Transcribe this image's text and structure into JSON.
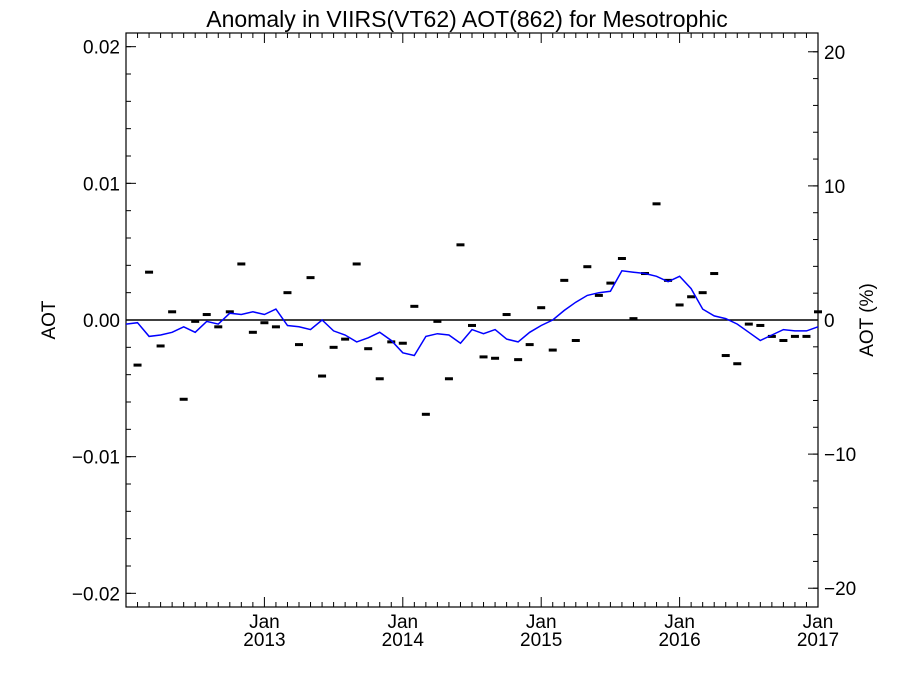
{
  "chart_data": {
    "type": "scatter",
    "title": "Anomaly in VIIRS(VT62) AOT(862) for Mesotrophic",
    "ylabel_left": "AOT",
    "ylabel_right": "AOT (%)",
    "ylim_left": [
      -0.021,
      0.021
    ],
    "ylim_right": [
      -21.4,
      21.4
    ],
    "yticks_left": [
      {
        "value": 0.02,
        "label": "0.02"
      },
      {
        "value": 0.01,
        "label": "0.01"
      },
      {
        "value": 0.0,
        "label": "0.00"
      },
      {
        "value": -0.01,
        "label": "−0.01"
      },
      {
        "value": -0.02,
        "label": "−0.02"
      }
    ],
    "yticks_right": [
      {
        "value": 20,
        "label": "20"
      },
      {
        "value": 10,
        "label": "10"
      },
      {
        "value": 0,
        "label": "0"
      },
      {
        "value": -10,
        "label": "−10"
      },
      {
        "value": -20,
        "label": "−20"
      }
    ],
    "xlim": [
      "2012-01",
      "2017-01"
    ],
    "xticks": [
      {
        "month": "Jan",
        "year": "2013",
        "date": "2013-01"
      },
      {
        "month": "Jan",
        "year": "2014",
        "date": "2014-01"
      },
      {
        "month": "Jan",
        "year": "2015",
        "date": "2015-01"
      },
      {
        "month": "Jan",
        "year": "2016",
        "date": "2016-01"
      },
      {
        "month": "Jan",
        "year": "2017",
        "date": "2017-01"
      }
    ],
    "zero_line": true,
    "grid": false,
    "series": [
      {
        "kind": "monthly-markers",
        "color": "#000000",
        "points": [
          {
            "x": "2012-02",
            "y": -0.0033
          },
          {
            "x": "2012-03",
            "y": 0.0035
          },
          {
            "x": "2012-04",
            "y": -0.0019
          },
          {
            "x": "2012-05",
            "y": 0.0006
          },
          {
            "x": "2012-06",
            "y": -0.0058
          },
          {
            "x": "2012-07",
            "y": -0.0001
          },
          {
            "x": "2012-08",
            "y": 0.0004
          },
          {
            "x": "2012-09",
            "y": -0.0005
          },
          {
            "x": "2012-10",
            "y": 0.0006
          },
          {
            "x": "2012-11",
            "y": 0.0041
          },
          {
            "x": "2012-12",
            "y": -0.0009
          },
          {
            "x": "2013-01",
            "y": -0.0002
          },
          {
            "x": "2013-02",
            "y": -0.0005
          },
          {
            "x": "2013-03",
            "y": 0.002
          },
          {
            "x": "2013-04",
            "y": -0.0018
          },
          {
            "x": "2013-05",
            "y": 0.0031
          },
          {
            "x": "2013-06",
            "y": -0.0041
          },
          {
            "x": "2013-07",
            "y": -0.002
          },
          {
            "x": "2013-08",
            "y": -0.0014
          },
          {
            "x": "2013-09",
            "y": 0.0041
          },
          {
            "x": "2013-10",
            "y": -0.0021
          },
          {
            "x": "2013-11",
            "y": -0.0043
          },
          {
            "x": "2013-12",
            "y": -0.0016
          },
          {
            "x": "2014-01",
            "y": -0.0017
          },
          {
            "x": "2014-02",
            "y": 0.001
          },
          {
            "x": "2014-03",
            "y": -0.0069
          },
          {
            "x": "2014-04",
            "y": -0.0001
          },
          {
            "x": "2014-05",
            "y": -0.0043
          },
          {
            "x": "2014-06",
            "y": 0.0055
          },
          {
            "x": "2014-07",
            "y": -0.0004
          },
          {
            "x": "2014-08",
            "y": -0.0027
          },
          {
            "x": "2014-09",
            "y": -0.0028
          },
          {
            "x": "2014-10",
            "y": 0.0004
          },
          {
            "x": "2014-11",
            "y": -0.0029
          },
          {
            "x": "2014-12",
            "y": -0.0018
          },
          {
            "x": "2015-01",
            "y": 0.0009
          },
          {
            "x": "2015-02",
            "y": -0.0022
          },
          {
            "x": "2015-03",
            "y": 0.0029
          },
          {
            "x": "2015-04",
            "y": -0.0015
          },
          {
            "x": "2015-05",
            "y": 0.0039
          },
          {
            "x": "2015-06",
            "y": 0.0018
          },
          {
            "x": "2015-07",
            "y": 0.0027
          },
          {
            "x": "2015-08",
            "y": 0.0045
          },
          {
            "x": "2015-09",
            "y": 0.0001
          },
          {
            "x": "2015-10",
            "y": 0.0034
          },
          {
            "x": "2015-11",
            "y": 0.0085
          },
          {
            "x": "2015-12",
            "y": 0.0029
          },
          {
            "x": "2016-01",
            "y": 0.0011
          },
          {
            "x": "2016-02",
            "y": 0.0017
          },
          {
            "x": "2016-03",
            "y": 0.002
          },
          {
            "x": "2016-04",
            "y": 0.0034
          },
          {
            "x": "2016-05",
            "y": -0.0026
          },
          {
            "x": "2016-06",
            "y": -0.0032
          },
          {
            "x": "2016-07",
            "y": -0.0003
          },
          {
            "x": "2016-08",
            "y": -0.0004
          },
          {
            "x": "2016-09",
            "y": -0.0012
          },
          {
            "x": "2016-10",
            "y": -0.0015
          },
          {
            "x": "2016-11",
            "y": -0.0012
          },
          {
            "x": "2016-12",
            "y": -0.0012
          },
          {
            "x": "2017-01",
            "y": 0.0006
          }
        ]
      },
      {
        "kind": "smoothed-line",
        "color": "#0000ff",
        "points": [
          {
            "x": "2012-01",
            "y": -0.0003
          },
          {
            "x": "2012-02",
            "y": -0.0002
          },
          {
            "x": "2012-03",
            "y": -0.0012
          },
          {
            "x": "2012-04",
            "y": -0.0011
          },
          {
            "x": "2012-05",
            "y": -0.0009
          },
          {
            "x": "2012-06",
            "y": -0.0005
          },
          {
            "x": "2012-07",
            "y": -0.0009
          },
          {
            "x": "2012-08",
            "y": -0.0001
          },
          {
            "x": "2012-09",
            "y": -0.0003
          },
          {
            "x": "2012-10",
            "y": 0.0005
          },
          {
            "x": "2012-11",
            "y": 0.0004
          },
          {
            "x": "2012-12",
            "y": 0.0006
          },
          {
            "x": "2013-01",
            "y": 0.0004
          },
          {
            "x": "2013-02",
            "y": 0.0008
          },
          {
            "x": "2013-03",
            "y": -0.0004
          },
          {
            "x": "2013-04",
            "y": -0.0005
          },
          {
            "x": "2013-05",
            "y": -0.0007
          },
          {
            "x": "2013-06",
            "y": 0.0
          },
          {
            "x": "2013-07",
            "y": -0.0008
          },
          {
            "x": "2013-08",
            "y": -0.0011
          },
          {
            "x": "2013-09",
            "y": -0.0016
          },
          {
            "x": "2013-10",
            "y": -0.0013
          },
          {
            "x": "2013-11",
            "y": -0.0009
          },
          {
            "x": "2013-12",
            "y": -0.0015
          },
          {
            "x": "2014-01",
            "y": -0.0024
          },
          {
            "x": "2014-02",
            "y": -0.0026
          },
          {
            "x": "2014-03",
            "y": -0.0012
          },
          {
            "x": "2014-04",
            "y": -0.001
          },
          {
            "x": "2014-05",
            "y": -0.0011
          },
          {
            "x": "2014-06",
            "y": -0.0017
          },
          {
            "x": "2014-07",
            "y": -0.0007
          },
          {
            "x": "2014-08",
            "y": -0.001
          },
          {
            "x": "2014-09",
            "y": -0.0007
          },
          {
            "x": "2014-10",
            "y": -0.0014
          },
          {
            "x": "2014-11",
            "y": -0.0016
          },
          {
            "x": "2014-12",
            "y": -0.0009
          },
          {
            "x": "2015-01",
            "y": -0.0004
          },
          {
            "x": "2015-02",
            "y": 0.0
          },
          {
            "x": "2015-03",
            "y": 0.0007
          },
          {
            "x": "2015-04",
            "y": 0.0013
          },
          {
            "x": "2015-05",
            "y": 0.0018
          },
          {
            "x": "2015-06",
            "y": 0.002
          },
          {
            "x": "2015-07",
            "y": 0.0021
          },
          {
            "x": "2015-08",
            "y": 0.0036
          },
          {
            "x": "2015-09",
            "y": 0.0035
          },
          {
            "x": "2015-10",
            "y": 0.0034
          },
          {
            "x": "2015-11",
            "y": 0.0032
          },
          {
            "x": "2015-12",
            "y": 0.0028
          },
          {
            "x": "2016-01",
            "y": 0.0032
          },
          {
            "x": "2016-02",
            "y": 0.0023
          },
          {
            "x": "2016-03",
            "y": 0.0008
          },
          {
            "x": "2016-04",
            "y": 0.0003
          },
          {
            "x": "2016-05",
            "y": 0.0001
          },
          {
            "x": "2016-06",
            "y": -0.0003
          },
          {
            "x": "2016-07",
            "y": -0.0009
          },
          {
            "x": "2016-08",
            "y": -0.0015
          },
          {
            "x": "2016-09",
            "y": -0.0011
          },
          {
            "x": "2016-10",
            "y": -0.0007
          },
          {
            "x": "2016-11",
            "y": -0.0008
          },
          {
            "x": "2016-12",
            "y": -0.0008
          },
          {
            "x": "2017-01",
            "y": -0.0005
          }
        ]
      }
    ]
  }
}
